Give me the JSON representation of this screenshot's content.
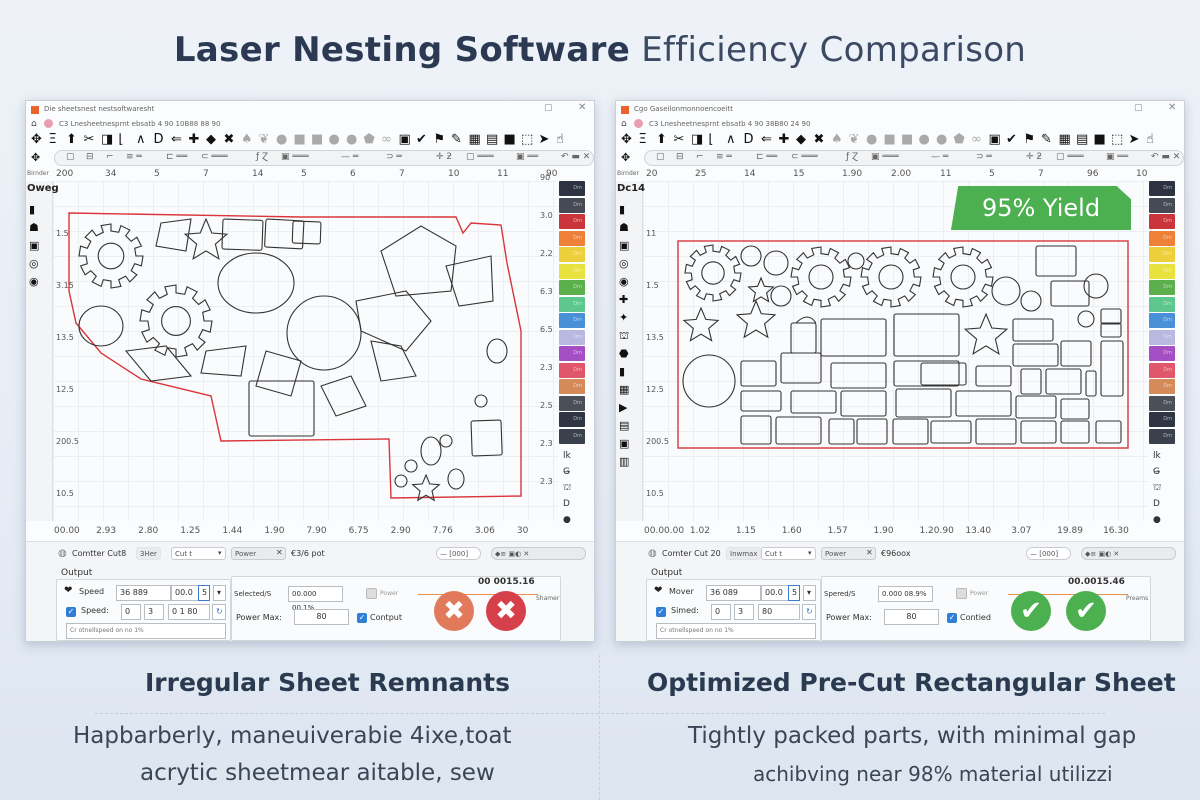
{
  "header": {
    "title_bold": "Laser Nesting Software",
    "title_light": "Efficiency Comparison"
  },
  "colors": {
    "accent_red": "#d9353a",
    "yield_green": "#4caf50",
    "cancel_orange": "#e07a5a",
    "cancel_red": "#d6404a",
    "accept_green": "#4caf50"
  },
  "toolbar_icons": [
    "move",
    "text",
    "pin",
    "scissors",
    "cut",
    "corner",
    "angle",
    "door",
    "arrow-left",
    "plus",
    "diamond",
    "cross",
    "tree",
    "leaf",
    "drop",
    "square",
    "square",
    "circle",
    "circle",
    "shield",
    "link",
    "save",
    "check",
    "flag",
    "brush",
    "image",
    "layers",
    "square",
    "select",
    "arrow",
    "tap"
  ],
  "palette_colors": [
    "#2d3340",
    "#454a55",
    "#c9353a",
    "#ee8038",
    "#eccf3a",
    "#e8e23f",
    "#5cb04c",
    "#5ec78e",
    "#4a90d6",
    "#b8b8e0",
    "#a44fc4",
    "#e0566a",
    "#d58a5a",
    "#4a4f58",
    "#2f3542",
    "#3a404c"
  ],
  "panels": [
    {
      "window_title": "Die sheetsnest nestsoftwaresht",
      "address": "C3 Lnesheetnesprnt  ebsatb  4  90  10B88  88  90",
      "palette_heading": "Oweg",
      "palette_label": "Birnder",
      "ruler_top": [
        "200",
        "34",
        "5",
        "7",
        "14",
        "5",
        "6",
        "7",
        "10",
        "11",
        "90"
      ],
      "ruler_left": [
        "1.5",
        "3.15",
        "13.5",
        "12.5",
        "200.5",
        "10.5"
      ],
      "ruler_right": [
        "90",
        "3.0",
        "2.2",
        "6.3",
        "6.5",
        "2.3",
        "2.5",
        "2.3",
        "2.3"
      ],
      "ruler_bottom": [
        "00.00",
        "2.93",
        "2.80",
        "1.25",
        "1.44",
        "1.90",
        "7.90",
        "6.75",
        "2.90",
        "7.76",
        "3.06",
        "30"
      ],
      "bottom": {
        "mode_label": "Comtter Cut8",
        "chip1": "3Her",
        "cut_select": "Cut t",
        "power_chip": "Power",
        "power_value": "€3/6 pot",
        "zoom_chip": "— [000]",
        "output_label": "Output",
        "row1_label": "Speed",
        "row1_v1": "36 889",
        "row1_v2": "00.0",
        "row1_v3": "5",
        "row2_label": "Speed:",
        "row2_v1": "0",
        "row2_v2": "3",
        "row2_v3": "0 1 80",
        "row3_text": "Cr otnellspeed on no 1%",
        "selected_label": "Selected/S",
        "selected_value": "00.000 00.1%",
        "power_checkbox": "Power",
        "power_max_label": "Power Max:",
        "power_max_value": "80",
        "output_checkbox": "Contput",
        "timer": "00 0015.16",
        "side_note": "Shamer",
        "action_icon": "cancel-x"
      }
    },
    {
      "window_title": "Cgo Gaseilonmonnoencoeitt",
      "address": "C3 Lnesheetnesprnt  ebsatb  4  90  38B80  24  90",
      "palette_heading": "Dc14",
      "palette_label": "Birnder",
      "badge": "95% Yield",
      "ruler_top": [
        "20",
        "25",
        "14",
        "15",
        "1.90",
        "2.00",
        "11",
        "5",
        "7",
        "96",
        "10"
      ],
      "ruler_left": [
        "11",
        "1.5",
        "13.5",
        "12.5",
        "200.5",
        "10.5"
      ],
      "ruler_right": [
        "",
        "",
        "",
        "",
        "",
        "",
        "",
        "",
        ""
      ],
      "ruler_bottom": [
        "00.00.00",
        "1.02",
        "1.15",
        "1.60",
        "1.57",
        "1.90",
        "1.20.90",
        "13.40",
        "3.07",
        "19.89",
        "16.30"
      ],
      "bottom": {
        "mode_label": "Comter Cut 20",
        "chip1": "Inwmax",
        "cut_select": "Cut t",
        "power_chip": "Power",
        "power_value": "€96oox",
        "zoom_chip": "— [000]",
        "output_label": "Output",
        "row1_label": "Mover",
        "row1_v1": "36 089",
        "row1_v2": "00.0",
        "row1_v3": "5",
        "row2_label": "Simed:",
        "row2_v1": "0",
        "row2_v2": "3",
        "row2_v3": "80",
        "row3_text": "Cr otnellspeed on no 1%",
        "selected_label": "Spered/S",
        "selected_value": "0.000 08.9%",
        "power_checkbox": "Power",
        "power_max_label": "Power Max:",
        "power_max_value": "80",
        "output_checkbox": "Contied",
        "timer": "00.0015.46",
        "side_note": "Preams",
        "action_icon": "accept-check"
      }
    }
  ],
  "captions": [
    {
      "title": "Irregular Sheet Remnants",
      "line1": "Hapbarberly, maneuiverabie 4ixe,toat",
      "line2": "acrytic sheetmear aitable, sew"
    },
    {
      "title": "Optimized Pre-Cut Rectangular Sheet",
      "line1": "Tightly packed parts, with minimal gap",
      "line2": "achibving near 98% material utilizzi"
    }
  ]
}
